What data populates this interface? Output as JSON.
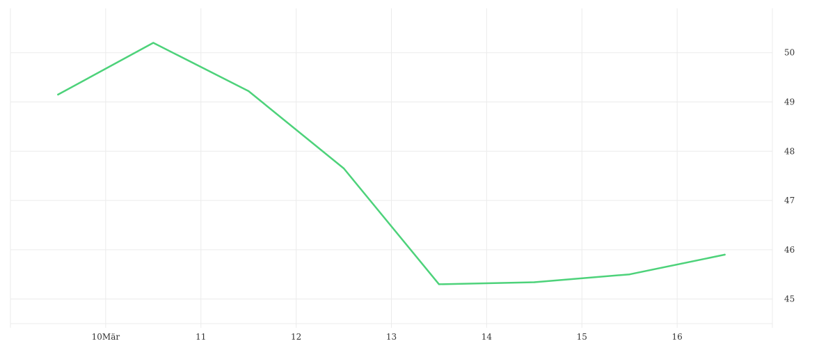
{
  "chart_data": {
    "type": "line",
    "x": [
      "2024-03-09T12:00",
      "2024-03-10T12:00",
      "2024-03-11T12:00",
      "2024-03-12T12:00",
      "2024-03-13T12:00",
      "2024-03-14T12:00",
      "2024-03-15T12:00",
      "2024-03-16T12:00"
    ],
    "series": [
      {
        "values": [
          49.15,
          50.2,
          49.22,
          47.65,
          45.3,
          45.34,
          45.5,
          45.9
        ],
        "color": "#4dd27a"
      }
    ],
    "x_ticks": [
      {
        "date": "2024-03-10",
        "label": "10Mär"
      },
      {
        "date": "2024-03-11",
        "label": "11"
      },
      {
        "date": "2024-03-12",
        "label": "12"
      },
      {
        "date": "2024-03-13",
        "label": "13"
      },
      {
        "date": "2024-03-14",
        "label": "14"
      },
      {
        "date": "2024-03-15",
        "label": "15"
      },
      {
        "date": "2024-03-16",
        "label": "16"
      }
    ],
    "y_ticks": [
      45,
      46,
      47,
      48,
      49,
      50
    ],
    "xlim": [
      "2024-03-09T00:00",
      "2024-03-17T00:00"
    ],
    "ylim": [
      44.5,
      50.9
    ],
    "y_axis_position": "right",
    "grid": true,
    "title": "",
    "xlabel": "",
    "ylabel": ""
  }
}
